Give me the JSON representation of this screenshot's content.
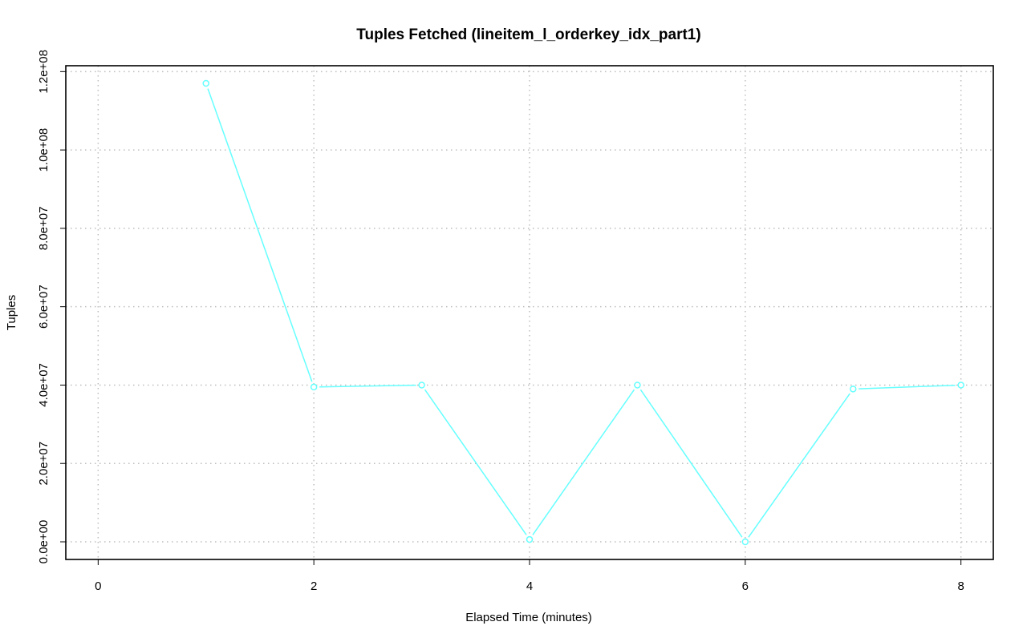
{
  "chart_data": {
    "type": "line",
    "title": "Tuples Fetched (lineitem_l_orderkey_idx_part1)",
    "xlabel": "Elapsed Time (minutes)",
    "ylabel": "Tuples",
    "xlim": [
      -0.3,
      8.3
    ],
    "ylim": [
      -4500000,
      121500000
    ],
    "x_ticks": [
      0,
      2,
      4,
      6,
      8
    ],
    "x_tick_labels": [
      "0",
      "2",
      "4",
      "6",
      "8"
    ],
    "y_ticks": [
      0,
      20000000,
      40000000,
      60000000,
      80000000,
      100000000,
      120000000
    ],
    "y_tick_labels": [
      "0.0e+00",
      "2.0e+07",
      "4.0e+07",
      "6.0e+07",
      "8.0e+07",
      "1.0e+08",
      "1.2e+08"
    ],
    "grid": true,
    "series": [
      {
        "color": "#66ffff",
        "x": [
          1,
          2,
          3,
          4,
          5,
          6,
          7,
          8
        ],
        "y": [
          117000000,
          39500000,
          40000000,
          600000,
          40000000,
          0,
          39000000,
          40000000
        ]
      }
    ]
  }
}
